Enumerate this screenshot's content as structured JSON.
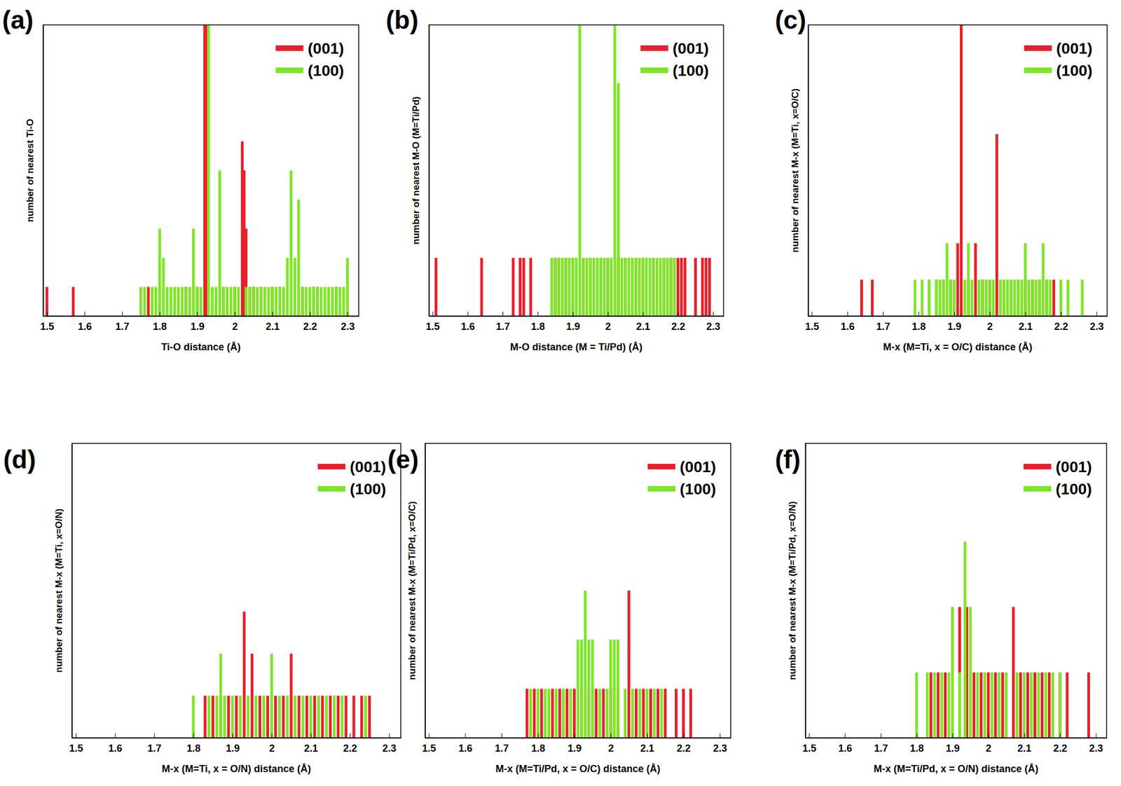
{
  "chart_data": [
    {
      "type": "bar",
      "title": "(a)",
      "x_label": "Ti-O distance (Å)",
      "y_label": "number of nearest Ti-O",
      "xlim": [
        1.49,
        2.33
      ],
      "xticks": [
        1.5,
        1.6,
        1.7,
        1.8,
        1.9,
        2,
        2.1,
        2.2,
        2.3
      ],
      "ylim": [
        0,
        10
      ],
      "yticks": [],
      "tick_labels": "x",
      "legend": "upper right",
      "series": [
        {
          "name": "(001)",
          "color": "#e8202a",
          "x": [
            1.5,
            1.57,
            1.77,
            1.87,
            1.9,
            1.92,
            1.925,
            1.97,
            2,
            2.02,
            2.025,
            2.03,
            2.04,
            2.05,
            2.07,
            2.1,
            2.12,
            2.18,
            2.21,
            2.22,
            2.27
          ],
          "values": [
            1,
            1,
            1,
            1,
            1,
            10,
            10,
            1,
            1,
            6,
            5,
            3,
            1,
            1,
            1,
            1,
            1,
            1,
            1,
            1,
            1
          ]
        },
        {
          "name": "(100)",
          "color": "#7fe52a",
          "x": [
            1.75,
            1.76,
            1.78,
            1.79,
            1.8,
            1.81,
            1.82,
            1.83,
            1.84,
            1.85,
            1.86,
            1.87,
            1.88,
            1.89,
            1.9,
            1.91,
            1.93,
            1.94,
            1.95,
            1.96,
            1.97,
            1.98,
            1.99,
            2,
            2.01,
            2.03,
            2.04,
            2.05,
            2.06,
            2.07,
            2.08,
            2.09,
            2.1,
            2.11,
            2.12,
            2.13,
            2.14,
            2.15,
            2.16,
            2.17,
            2.18,
            2.19,
            2.2,
            2.21,
            2.22,
            2.23,
            2.24,
            2.25,
            2.26,
            2.27,
            2.28,
            2.29,
            2.3
          ],
          "values": [
            1,
            1,
            1,
            1,
            3,
            2,
            1,
            1,
            1,
            1,
            1,
            1,
            1,
            3,
            1,
            1,
            10,
            1,
            1,
            5,
            1,
            1,
            1,
            1,
            1,
            1,
            1,
            1,
            1,
            1,
            1,
            1,
            1,
            1,
            1,
            1,
            2,
            5,
            2,
            4,
            1,
            1,
            1,
            1,
            1,
            1,
            1,
            1,
            1,
            1,
            1,
            1,
            2
          ]
        }
      ]
    },
    {
      "type": "bar",
      "title": "(b)",
      "x_label": "M-O distance (M = Ti/Pd) (Å)",
      "y_label": "number of nearest M-O (M=Ti/Pd)",
      "xlim": [
        1.49,
        2.33
      ],
      "xticks": [
        1.5,
        1.6,
        1.7,
        1.8,
        1.9,
        2,
        2.1,
        2.2,
        2.3
      ],
      "ylim": [
        0,
        5
      ],
      "yticks": [],
      "tick_labels": "x",
      "legend": "upper right",
      "series": [
        {
          "name": "(001)",
          "color": "#e8202a",
          "x": [
            1.51,
            1.64,
            1.73,
            1.75,
            1.76,
            1.78,
            1.85,
            1.86,
            1.88,
            1.9,
            1.93,
            1.95,
            1.98,
            2,
            2.03,
            2.05,
            2.08,
            2.1,
            2.13,
            2.16,
            2.18,
            2.2,
            2.21,
            2.22,
            2.25,
            2.27,
            2.28,
            2.29
          ],
          "values": [
            1,
            1,
            1,
            1,
            1,
            1,
            1,
            1,
            1,
            1,
            1,
            1,
            1,
            1,
            1,
            1,
            1,
            1,
            1,
            1,
            1,
            1,
            1,
            1,
            1,
            1,
            1,
            1
          ]
        },
        {
          "name": "(100)",
          "color": "#7fe52a",
          "x": [
            1.84,
            1.85,
            1.86,
            1.87,
            1.88,
            1.89,
            1.9,
            1.91,
            1.92,
            1.93,
            1.94,
            1.95,
            1.96,
            1.97,
            1.98,
            1.99,
            2,
            2.01,
            2.02,
            2.03,
            2.04,
            2.05,
            2.06,
            2.07,
            2.08,
            2.09,
            2.1,
            2.11,
            2.12,
            2.13,
            2.14,
            2.15,
            2.16,
            2.17,
            2.18,
            2.19
          ],
          "values": [
            1,
            1,
            1,
            1,
            1,
            1,
            1,
            1,
            5,
            1,
            1,
            1,
            1,
            1,
            1,
            1,
            1,
            1,
            5,
            4,
            1,
            1,
            1,
            1,
            1,
            1,
            1,
            1,
            1,
            1,
            1,
            1,
            1,
            1,
            1,
            1
          ]
        }
      ]
    },
    {
      "type": "bar",
      "title": "(c)",
      "x_label": "M-x (M=Ti, x = O/C) distance (Å)",
      "y_label": "number of nearest M-x (M=Ti, x=O/C)",
      "xlim": [
        1.49,
        2.33
      ],
      "xticks": [
        1.5,
        1.6,
        1.7,
        1.8,
        1.9,
        2,
        2.1,
        2.2,
        2.3
      ],
      "ylim": [
        0,
        8
      ],
      "yticks": [],
      "tick_labels": "x",
      "legend": "upper right",
      "series": [
        {
          "name": "(001)",
          "color": "#e8202a",
          "x": [
            1.64,
            1.67,
            1.83,
            1.85,
            1.87,
            1.89,
            1.91,
            1.92,
            1.94,
            1.96,
            1.98,
            2,
            2.02,
            2.04,
            2.06,
            2.08,
            2.1,
            2.12,
            2.14,
            2.16,
            2.18
          ],
          "values": [
            1,
            1,
            1,
            1,
            1,
            1,
            2,
            8,
            1,
            2,
            1,
            1,
            5,
            1,
            1,
            1,
            1,
            1,
            1,
            1,
            1
          ]
        },
        {
          "name": "(100)",
          "color": "#7fe52a",
          "x": [
            1.79,
            1.81,
            1.83,
            1.85,
            1.86,
            1.87,
            1.88,
            1.89,
            1.9,
            1.93,
            1.94,
            1.95,
            1.97,
            1.98,
            1.99,
            2,
            2.01,
            2.03,
            2.04,
            2.05,
            2.06,
            2.07,
            2.08,
            2.09,
            2.1,
            2.11,
            2.12,
            2.13,
            2.14,
            2.15,
            2.16,
            2.17,
            2.2,
            2.22,
            2.26
          ],
          "values": [
            1,
            1,
            1,
            1,
            1,
            1,
            2,
            1,
            1,
            1,
            2,
            1,
            1,
            1,
            1,
            1,
            1,
            1,
            1,
            1,
            1,
            1,
            1,
            1,
            2,
            1,
            1,
            1,
            1,
            2,
            1,
            1,
            1,
            1,
            1
          ]
        }
      ]
    },
    {
      "type": "bar",
      "title": "(d)",
      "x_label": "M-x (M=Ti, x = O/N) distance (Å)",
      "y_label": "number of nearest M-x (M=Ti, x=O/N)",
      "xlim": [
        1.49,
        2.33
      ],
      "xticks": [
        1.5,
        1.6,
        1.7,
        1.8,
        1.9,
        2,
        2.1,
        2.2,
        2.3
      ],
      "ylim": [
        0,
        7
      ],
      "yticks": [],
      "tick_labels": "x",
      "legend": "upper right",
      "series": [
        {
          "name": "(001)",
          "color": "#e8202a",
          "x": [
            1.83,
            1.85,
            1.87,
            1.89,
            1.91,
            1.93,
            1.95,
            1.97,
            1.99,
            2.01,
            2.03,
            2.05,
            2.07,
            2.09,
            2.11,
            2.13,
            2.15,
            2.17,
            2.19,
            2.21,
            2.23,
            2.25
          ],
          "values": [
            1,
            1,
            1,
            1,
            1,
            3,
            2,
            1,
            1,
            1,
            1,
            2,
            1,
            1,
            1,
            1,
            1,
            1,
            1,
            1,
            1,
            1
          ]
        },
        {
          "name": "(100)",
          "color": "#7fe52a",
          "x": [
            1.8,
            1.84,
            1.86,
            1.87,
            1.88,
            1.9,
            1.92,
            1.94,
            1.96,
            1.98,
            2,
            2.02,
            2.04,
            2.06,
            2.08,
            2.1,
            2.12,
            2.14,
            2.16,
            2.18,
            2.24
          ],
          "values": [
            1,
            1,
            1,
            2,
            1,
            1,
            1,
            1,
            1,
            1,
            2,
            1,
            1,
            1,
            1,
            1,
            1,
            1,
            1,
            1,
            1
          ]
        }
      ]
    },
    {
      "type": "bar",
      "title": "(e)",
      "x_label": "M-x (M=Ti/Pd, x = O/C) distance (Å)",
      "y_label": "number of nearest M-x (M=Ti/Pd, x=O/C)",
      "xlim": [
        1.49,
        2.33
      ],
      "xticks": [
        1.5,
        1.6,
        1.7,
        1.8,
        1.9,
        2,
        2.1,
        2.2,
        2.3
      ],
      "ylim": [
        0,
        6
      ],
      "yticks": [],
      "tick_labels": "x",
      "legend": "upper right",
      "series": [
        {
          "name": "(001)",
          "color": "#e8202a",
          "x": [
            1.77,
            1.79,
            1.81,
            1.84,
            1.86,
            1.88,
            1.9,
            1.92,
            1.94,
            1.96,
            1.98,
            2,
            2.02,
            2.05,
            2.07,
            2.09,
            2.11,
            2.13,
            2.15,
            2.18,
            2.2,
            2.22
          ],
          "values": [
            1,
            1,
            1,
            1,
            1,
            1,
            1,
            1,
            1,
            1,
            1,
            1,
            1,
            3,
            1,
            1,
            1,
            1,
            1,
            1,
            1,
            1
          ]
        },
        {
          "name": "(100)",
          "color": "#7fe52a",
          "x": [
            1.78,
            1.8,
            1.82,
            1.83,
            1.85,
            1.87,
            1.89,
            1.91,
            1.92,
            1.93,
            1.94,
            1.95,
            1.97,
            1.99,
            2,
            2.01,
            2.02,
            2.04,
            2.06,
            2.08,
            2.1,
            2.12,
            2.14
          ],
          "values": [
            1,
            1,
            1,
            1,
            1,
            1,
            1,
            2,
            2,
            3,
            2,
            2,
            1,
            1,
            2,
            2,
            2,
            1,
            1,
            1,
            1,
            1,
            1
          ]
        }
      ]
    },
    {
      "type": "bar",
      "title": "(f)",
      "x_label": "M-x (M=Ti/Pd, x = O/N) distance (Å)",
      "y_label": "number of nearest M-x (M=Ti/Pd, x=O/N)",
      "xlim": [
        1.49,
        2.33
      ],
      "xticks": [
        1.5,
        1.6,
        1.7,
        1.8,
        1.9,
        2,
        2.1,
        2.2,
        2.3
      ],
      "ylim": [
        0,
        4.5
      ],
      "yticks": [],
      "tick_labels": "x",
      "legend": "upper right",
      "series": [
        {
          "name": "(001)",
          "color": "#e8202a",
          "x": [
            1.84,
            1.86,
            1.88,
            1.9,
            1.92,
            1.94,
            1.96,
            1.98,
            2,
            2.02,
            2.04,
            2.07,
            2.09,
            2.11,
            2.13,
            2.15,
            2.17,
            2.2,
            2.22,
            2.28
          ],
          "values": [
            1,
            1,
            1,
            1,
            2,
            2,
            1,
            1,
            1,
            1,
            1,
            2,
            1,
            1,
            1,
            1,
            1,
            1,
            1,
            1
          ]
        },
        {
          "name": "(100)",
          "color": "#7fe52a",
          "x": [
            1.8,
            1.83,
            1.85,
            1.87,
            1.89,
            1.9,
            1.92,
            1.935,
            1.95,
            1.97,
            1.99,
            2.01,
            2.03,
            2.05,
            2.08,
            2.1,
            2.12,
            2.14,
            2.16,
            2.18,
            2.2
          ],
          "values": [
            1,
            1,
            1,
            1,
            1,
            2,
            1,
            3,
            2,
            1,
            1,
            1,
            1,
            1,
            1,
            1,
            1,
            1,
            1,
            1,
            1
          ]
        }
      ]
    }
  ]
}
